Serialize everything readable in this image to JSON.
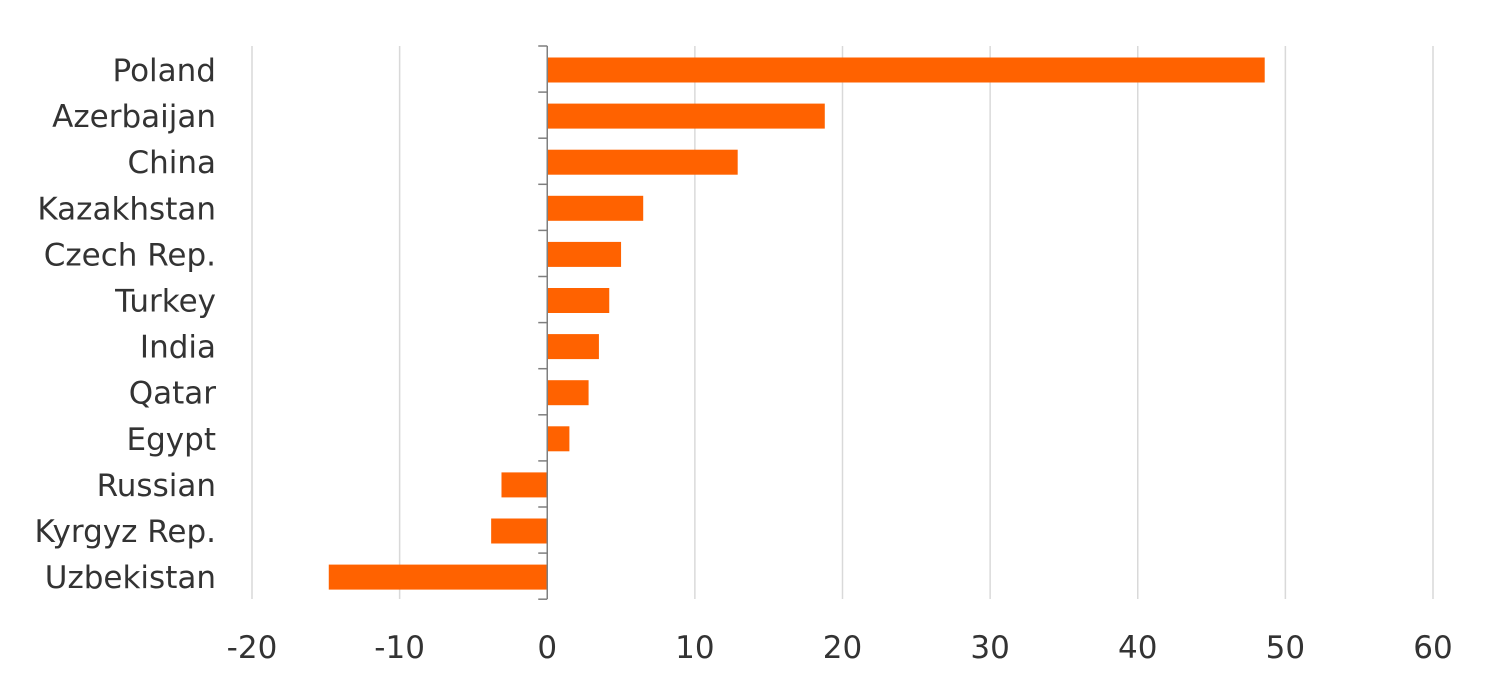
{
  "chart_data": {
    "type": "bar",
    "orientation": "horizontal",
    "title": "",
    "xlabel": "",
    "ylabel": "",
    "categories": [
      "Poland",
      "Azerbaijan",
      "China",
      "Kazakhstan",
      "Czech Rep.",
      "Turkey",
      "India",
      "Qatar",
      "Egypt",
      "Russian",
      "Kyrgyz Rep.",
      "Uzbekistan"
    ],
    "values": [
      48.6,
      18.8,
      12.9,
      6.5,
      5.0,
      4.2,
      3.5,
      2.8,
      1.5,
      -3.1,
      -3.8,
      -14.8
    ],
    "xlim": [
      -20,
      60
    ],
    "xticks": [
      "-20",
      "-10",
      "0",
      "10",
      "20",
      "30",
      "40",
      "50",
      "60"
    ],
    "grid": "vertical",
    "bar_color": "#ff6200",
    "legend": "none"
  }
}
